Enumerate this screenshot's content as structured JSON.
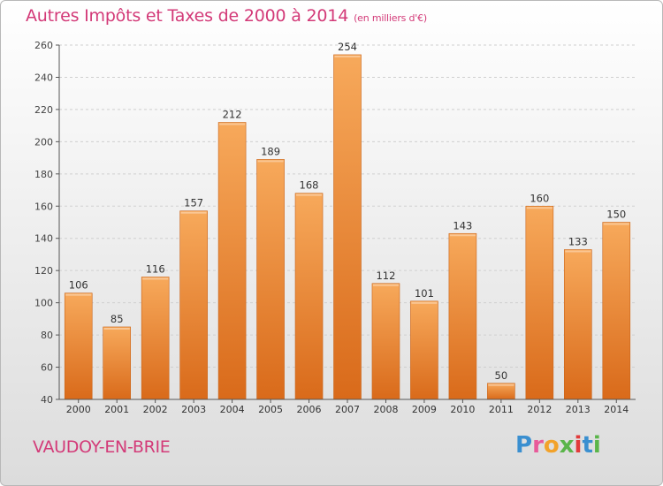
{
  "title": {
    "main": "Autres Impôts et Taxes de 2000 à 2014",
    "unit": "(en milliers d'€)"
  },
  "place": "VAUDOY-EN-BRIE",
  "brand": {
    "letters": [
      "P",
      "r",
      "o",
      "x",
      "i",
      "t",
      "i"
    ]
  },
  "colors": {
    "title": "#d33a78",
    "bar_light": "#f7a95b",
    "bar_dark": "#d96a1a",
    "axis": "#555555"
  },
  "chart_data": {
    "type": "bar",
    "categories": [
      "2000",
      "2001",
      "2002",
      "2003",
      "2004",
      "2005",
      "2006",
      "2007",
      "2008",
      "2009",
      "2010",
      "2011",
      "2012",
      "2013",
      "2014"
    ],
    "values": [
      106,
      85,
      116,
      157,
      212,
      189,
      168,
      254,
      112,
      101,
      143,
      50,
      160,
      133,
      150
    ],
    "ylim": [
      40,
      260
    ],
    "yticks": [
      40,
      60,
      80,
      100,
      120,
      140,
      160,
      180,
      200,
      220,
      240,
      260
    ],
    "grid": true,
    "legend": "none"
  }
}
